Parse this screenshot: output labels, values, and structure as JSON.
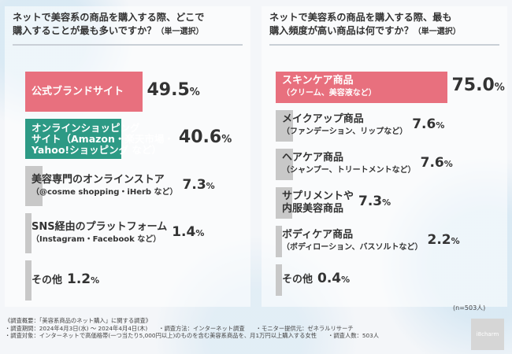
{
  "left_title_l1": "ネットで美容系の商品を購入する際、どこで",
  "left_title_l2": "購入することが最も多いですか？",
  "left_title_sub": "（単一選択）",
  "right_title_l1": "ネットで美容系の商品を購入する際、最も",
  "right_title_l2": "購入頻度が高い商品は何ですか？",
  "right_title_sub": "（単一選択）",
  "sample_note": "(n=503人)",
  "logo": "i8charm",
  "footnote": {
    "l1a": "《調査概要：「美容系商品のネット購入」に関する調査》",
    "l2a": "・調査期間：2024年4月3日(水) 〜 2024年4月4日(木)",
    "l2b": "・調査方法：インターネット調査",
    "l2c": "・モニター提供元：ゼネラルリサーチ",
    "l3a": "・調査対象：インターネットで高価格帯(一つ当たり5,000円以上)のものを含む美容系商品を、月1万円以上購入する女性",
    "l3b": "・調査人数：503人"
  },
  "colors": {
    "highlight": "#e8707e",
    "second": "#2d9a85",
    "rest": "#c8c8c8"
  },
  "chart_data": [
    {
      "type": "bar",
      "orientation": "horizontal",
      "categories": [
        [
          "公式ブランドサイト",
          ""
        ],
        [
          "オンラインショッピング",
          "サイト（Amazon・楽天市場・",
          "Yahoo!ショッピング など）"
        ],
        [
          "美容専門のオンラインストア",
          "（@cosme shopping・iHerb など）"
        ],
        [
          "SNS経由のプラットフォーム",
          "（Instagram・Facebook など）"
        ],
        [
          "その他",
          ""
        ]
      ],
      "values": [
        49.5,
        40.6,
        7.3,
        1.4,
        1.2
      ],
      "unit": "%"
    },
    {
      "type": "bar",
      "orientation": "horizontal",
      "categories": [
        [
          "スキンケア商品",
          "（クリーム、美容液など）"
        ],
        [
          "メイクアップ商品",
          "（ファンデーション、リップなど）"
        ],
        [
          "ヘアケア商品",
          "（シャンプー、トリートメントなど）"
        ],
        [
          "サプリメントや",
          "内服美容商品"
        ],
        [
          "ボディケア商品",
          "（ボディローション、バスソルトなど）"
        ],
        [
          "その他",
          ""
        ]
      ],
      "values": [
        75.0,
        7.6,
        7.6,
        7.3,
        2.2,
        0.4
      ],
      "unit": "%"
    }
  ]
}
